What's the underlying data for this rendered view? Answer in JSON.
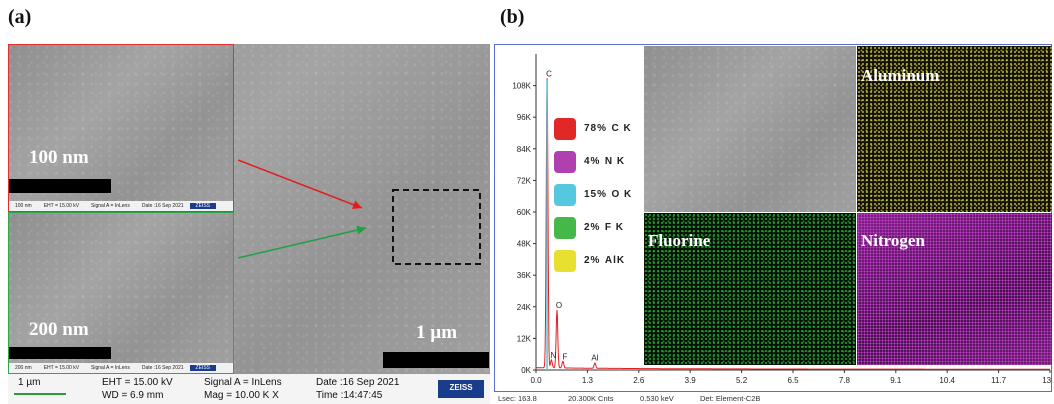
{
  "panels": {
    "a_label": "(a)",
    "b_label": "(b)"
  },
  "panel_a": {
    "inset_top": {
      "scale_label": "100 nm",
      "strip": [
        "100 nm",
        "EHT = 15.00 kV",
        "Signal A = InLens",
        "Date :16 Sep 2021",
        "ZEISS"
      ],
      "border_color": "#e03030"
    },
    "inset_bottom": {
      "scale_label": "200 nm",
      "strip": [
        "200 nm",
        "EHT = 15.00 kV",
        "Signal A = InLens",
        "Date :16 Sep 2021",
        "ZEISS"
      ],
      "border_color": "#2ea84a"
    },
    "main_scale_label": "1 µm",
    "infobar": {
      "scale": "1 µm",
      "eht": "EHT = 15.00 kV",
      "wd": "WD =  6.9 mm",
      "signal": "Signal A = InLens",
      "mag": "Mag =  10.00 K X",
      "date": "Date :16 Sep 2021",
      "time": "Time :14:47:45",
      "brand": "ZEISS"
    },
    "arrow_colors": {
      "red": "#e02020",
      "green": "#20a040"
    }
  },
  "panel_b": {
    "map_labels": {
      "aluminum": "Aluminum",
      "fluorine": "Fluorine",
      "nitrogen": "Nitrogen"
    },
    "legend": [
      {
        "pct": "78%",
        "element": "C K",
        "color": "#e02828"
      },
      {
        "pct": "4%",
        "element": "N K",
        "color": "#b040b0"
      },
      {
        "pct": "15%",
        "element": "O K",
        "color": "#55c8e0"
      },
      {
        "pct": "2%",
        "element": "F K",
        "color": "#44b848"
      },
      {
        "pct": "2%",
        "element": "AlK",
        "color": "#e8e030"
      }
    ],
    "footer": {
      "lsec": "Lsec: 163.8",
      "cnts": "20.300K Cnts",
      "kev": "0.530 keV",
      "det": "Det: Element-C2B"
    },
    "colors": {
      "aluminum_map": "#d8d040",
      "fluorine_map": "#2fae3a",
      "nitrogen_map": "#b030b8"
    }
  },
  "chart_data": {
    "type": "line",
    "title": "",
    "xlabel": "",
    "ylabel": "",
    "x_ticks": [
      "0.0",
      "1.3",
      "2.6",
      "3.9",
      "5.2",
      "6.5",
      "7.8",
      "9.1",
      "10.4",
      "11.7",
      "13.0"
    ],
    "y_ticks": [
      "0K",
      "12K",
      "24K",
      "36K",
      "48K",
      "60K",
      "72K",
      "84K",
      "96K",
      "108K"
    ],
    "xlim": [
      0,
      13
    ],
    "ylim": [
      0,
      120000
    ],
    "peaks": [
      {
        "label": "C",
        "x": 0.28,
        "y": 110000
      },
      {
        "label": "N",
        "x": 0.39,
        "y": 3000
      },
      {
        "label": "O",
        "x": 0.53,
        "y": 22000
      },
      {
        "label": "F",
        "x": 0.68,
        "y": 2500
      },
      {
        "label": "Al",
        "x": 1.49,
        "y": 2000
      }
    ]
  }
}
